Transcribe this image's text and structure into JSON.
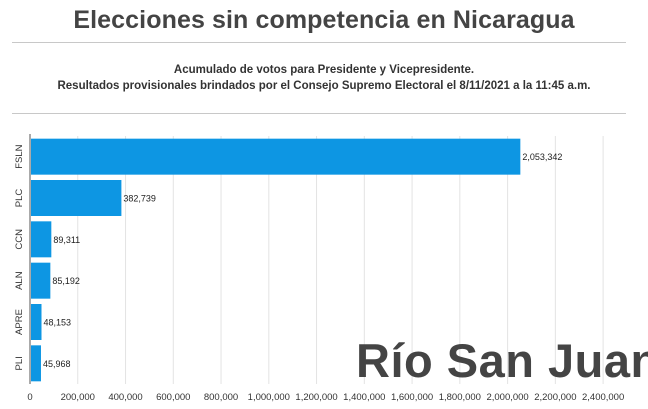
{
  "header": {
    "title": "Elecciones sin competencia en Nicaragua",
    "subtitle_line1": "Acumulado de votos para Presidente y Vicepresidente.",
    "subtitle_line2": "Resultados provisionales brindados por el Consejo Supremo Electoral el 8/11/2021 a la 11:45 a.m."
  },
  "watermark": "Río San Juan",
  "colors": {
    "bar": "#0d96e3",
    "grid": "#e3e3e3",
    "axis": "#555555",
    "title": "#444444"
  },
  "chart_data": {
    "type": "bar",
    "orientation": "horizontal",
    "categories": [
      "FSLN",
      "PLC",
      "CCN",
      "ALN",
      "APRE",
      "PLI"
    ],
    "values": [
      2053342,
      382739,
      89311,
      85192,
      48153,
      45968
    ],
    "value_labels": [
      "2,053,342",
      "382,739",
      "89,311",
      "85,192",
      "48,153",
      "45,968"
    ],
    "x_ticks": [
      0,
      200000,
      400000,
      600000,
      800000,
      1000000,
      1200000,
      1400000,
      1600000,
      1800000,
      2000000,
      2200000,
      2400000
    ],
    "x_tick_labels": [
      "0",
      "200,000",
      "400,000",
      "600,000",
      "800,000",
      "1,000,000",
      "1,200,000",
      "1,400,000",
      "1,600,000",
      "1,800,000",
      "2,000,000",
      "2,200,000",
      "2,400,000"
    ],
    "xlim": [
      0,
      2500000
    ],
    "grid": true,
    "legend": "none"
  }
}
